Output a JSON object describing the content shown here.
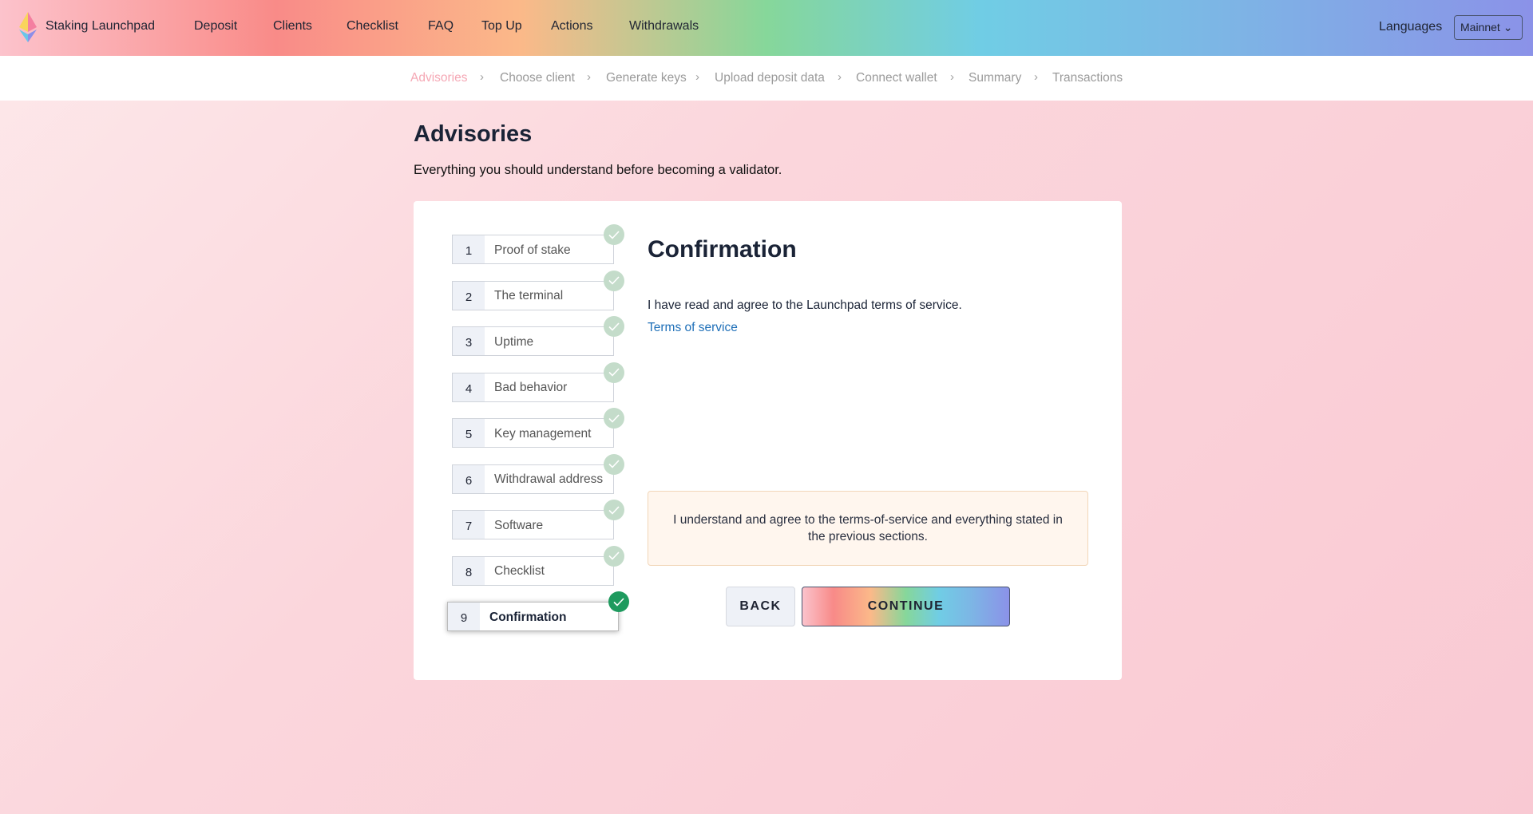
{
  "header": {
    "brand": "Staking Launchpad",
    "nav": [
      "Deposit",
      "Clients",
      "Checklist",
      "FAQ",
      "Top Up",
      "Actions",
      "Withdrawals"
    ],
    "languages": "Languages",
    "network": "Mainnet",
    "gradient": [
      "#fcc3cc",
      "#f98b88",
      "#fbb989",
      "#86d79a",
      "#70cde5",
      "#8b92e8"
    ]
  },
  "breadcrumb": {
    "items": [
      "Advisories",
      "Choose client",
      "Generate keys",
      "Upload deposit data",
      "Connect wallet",
      "Summary",
      "Transactions"
    ],
    "active": "Advisories",
    "active_color": "#f5a7b4"
  },
  "page": {
    "title": "Advisories",
    "subtitle": "Everything you should understand before becoming a validator."
  },
  "steps": [
    {
      "num": "1",
      "label": "Proof of stake",
      "done": true
    },
    {
      "num": "2",
      "label": "The terminal",
      "done": true
    },
    {
      "num": "3",
      "label": "Uptime",
      "done": true
    },
    {
      "num": "4",
      "label": "Bad behavior",
      "done": true
    },
    {
      "num": "5",
      "label": "Key management",
      "done": true
    },
    {
      "num": "6",
      "label": "Withdrawal address",
      "done": true
    },
    {
      "num": "7",
      "label": "Software",
      "done": true
    },
    {
      "num": "8",
      "label": "Checklist",
      "done": true
    },
    {
      "num": "9",
      "label": "Confirmation",
      "done": true,
      "current": true
    }
  ],
  "content": {
    "heading": "Confirmation",
    "text": "I have read and agree to the Launchpad terms of service.",
    "link": "Terms of service",
    "agreement": "I understand and agree to the terms-of-service and everything stated in the previous sections.",
    "back": "BACK",
    "continue": "CONTINUE"
  }
}
